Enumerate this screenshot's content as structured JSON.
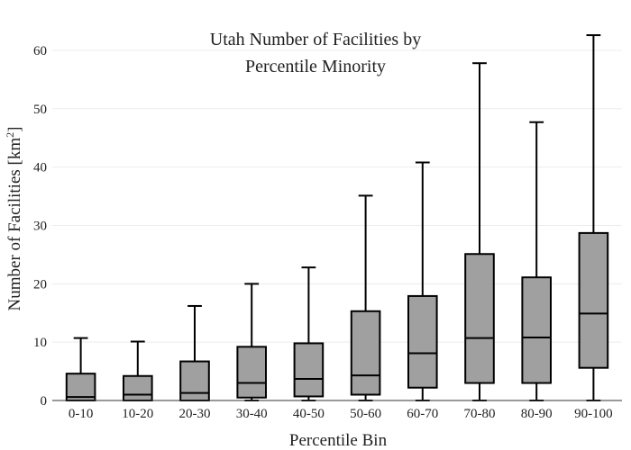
{
  "chart_data": {
    "type": "box",
    "title_lines": [
      "Utah Number of Facilities by",
      "Percentile Minority"
    ],
    "xlabel": "Percentile Bin",
    "ylabel": "Number of Facilities",
    "ylabel_unit_base": "km",
    "ylabel_unit_exp": "2",
    "ylim": [
      0,
      64
    ],
    "yticks": [
      0,
      10,
      20,
      30,
      40,
      50,
      60
    ],
    "grid": true,
    "legend": "none",
    "box_fill": "#a0a0a0",
    "line_color": "#000000",
    "categories": [
      "0-10",
      "10-20",
      "20-30",
      "30-40",
      "40-50",
      "50-60",
      "60-70",
      "70-80",
      "80-90",
      "90-100"
    ],
    "boxes": [
      {
        "whisker_low": 0,
        "q1": 0,
        "median": 0.6,
        "q3": 4.6,
        "whisker_high": 10.7
      },
      {
        "whisker_low": 0,
        "q1": 0,
        "median": 1.0,
        "q3": 4.2,
        "whisker_high": 10.1
      },
      {
        "whisker_low": 0,
        "q1": 0,
        "median": 1.3,
        "q3": 6.7,
        "whisker_high": 16.2
      },
      {
        "whisker_low": 0,
        "q1": 0.5,
        "median": 3.0,
        "q3": 9.2,
        "whisker_high": 20.0
      },
      {
        "whisker_low": 0,
        "q1": 0.7,
        "median": 3.7,
        "q3": 9.8,
        "whisker_high": 22.8
      },
      {
        "whisker_low": 0,
        "q1": 1.0,
        "median": 4.3,
        "q3": 15.3,
        "whisker_high": 35.1
      },
      {
        "whisker_low": 0,
        "q1": 2.2,
        "median": 8.1,
        "q3": 17.9,
        "whisker_high": 40.8
      },
      {
        "whisker_low": 0,
        "q1": 3.0,
        "median": 10.7,
        "q3": 25.1,
        "whisker_high": 57.8
      },
      {
        "whisker_low": 0,
        "q1": 3.0,
        "median": 10.8,
        "q3": 21.1,
        "whisker_high": 47.7
      },
      {
        "whisker_low": 0,
        "q1": 5.6,
        "median": 14.9,
        "q3": 28.7,
        "whisker_high": 62.6
      }
    ]
  }
}
